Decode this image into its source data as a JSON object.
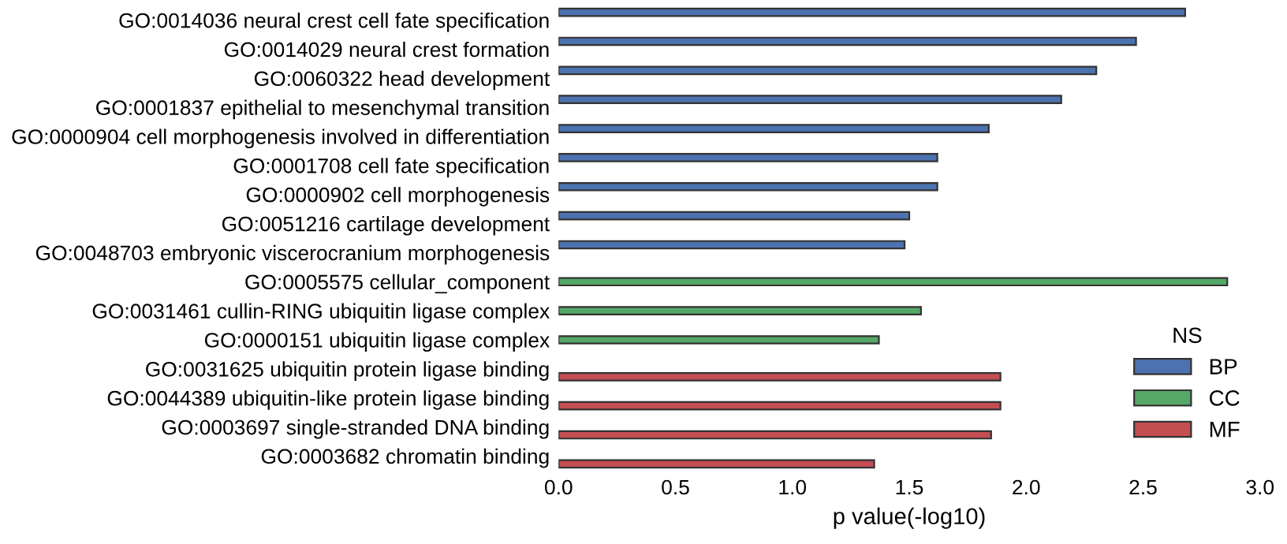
{
  "chart_data": {
    "type": "bar",
    "orientation": "horizontal",
    "xlabel": "p value(-log10)",
    "legend_title": "NS",
    "legend": "bottom right",
    "grid": false,
    "categories": [
      "GO:0014036 neural crest cell fate specification",
      "GO:0014029 neural crest formation",
      "GO:0060322 head development",
      "GO:0001837 epithelial to mesenchymal transition",
      "GO:0000904 cell morphogenesis involved in differentiation",
      "GO:0001708 cell fate specification",
      "GO:0000902 cell morphogenesis",
      "GO:0051216 cartilage development",
      "GO:0048703 embryonic viscerocranium morphogenesis",
      "GO:0005575 cellular_component",
      "GO:0031461 cullin-RING ubiquitin ligase complex",
      "GO:0000151 ubiquitin ligase complex",
      "GO:0031625 ubiquitin protein ligase binding",
      "GO:0044389 ubiquitin-like protein ligase binding",
      "GO:0003697 single-stranded DNA binding",
      "GO:0003682 chromatin binding"
    ],
    "series": [
      {
        "name": "BP",
        "color": "#4c72b0",
        "values": [
          2.68,
          2.47,
          2.3,
          2.15,
          1.84,
          1.62,
          1.62,
          1.5,
          1.48,
          null,
          null,
          null,
          null,
          null,
          null,
          null
        ]
      },
      {
        "name": "CC",
        "color": "#55a868",
        "values": [
          null,
          null,
          null,
          null,
          null,
          null,
          null,
          null,
          null,
          2.86,
          1.55,
          1.37,
          null,
          null,
          null,
          null
        ]
      },
      {
        "name": "MF",
        "color": "#c44e52",
        "values": [
          null,
          null,
          null,
          null,
          null,
          null,
          null,
          null,
          null,
          null,
          null,
          null,
          1.89,
          1.89,
          1.85,
          1.35
        ]
      }
    ],
    "xlim": [
      0,
      3
    ],
    "xticks": [
      {
        "value": 0,
        "label": "0.0"
      },
      {
        "value": 0.5,
        "label": "0.5"
      },
      {
        "value": 1,
        "label": "1.0"
      },
      {
        "value": 1.5,
        "label": "1.5"
      },
      {
        "value": 2,
        "label": "2.0"
      },
      {
        "value": 2.5,
        "label": "2.5"
      },
      {
        "value": 3,
        "label": "3.0"
      }
    ]
  }
}
